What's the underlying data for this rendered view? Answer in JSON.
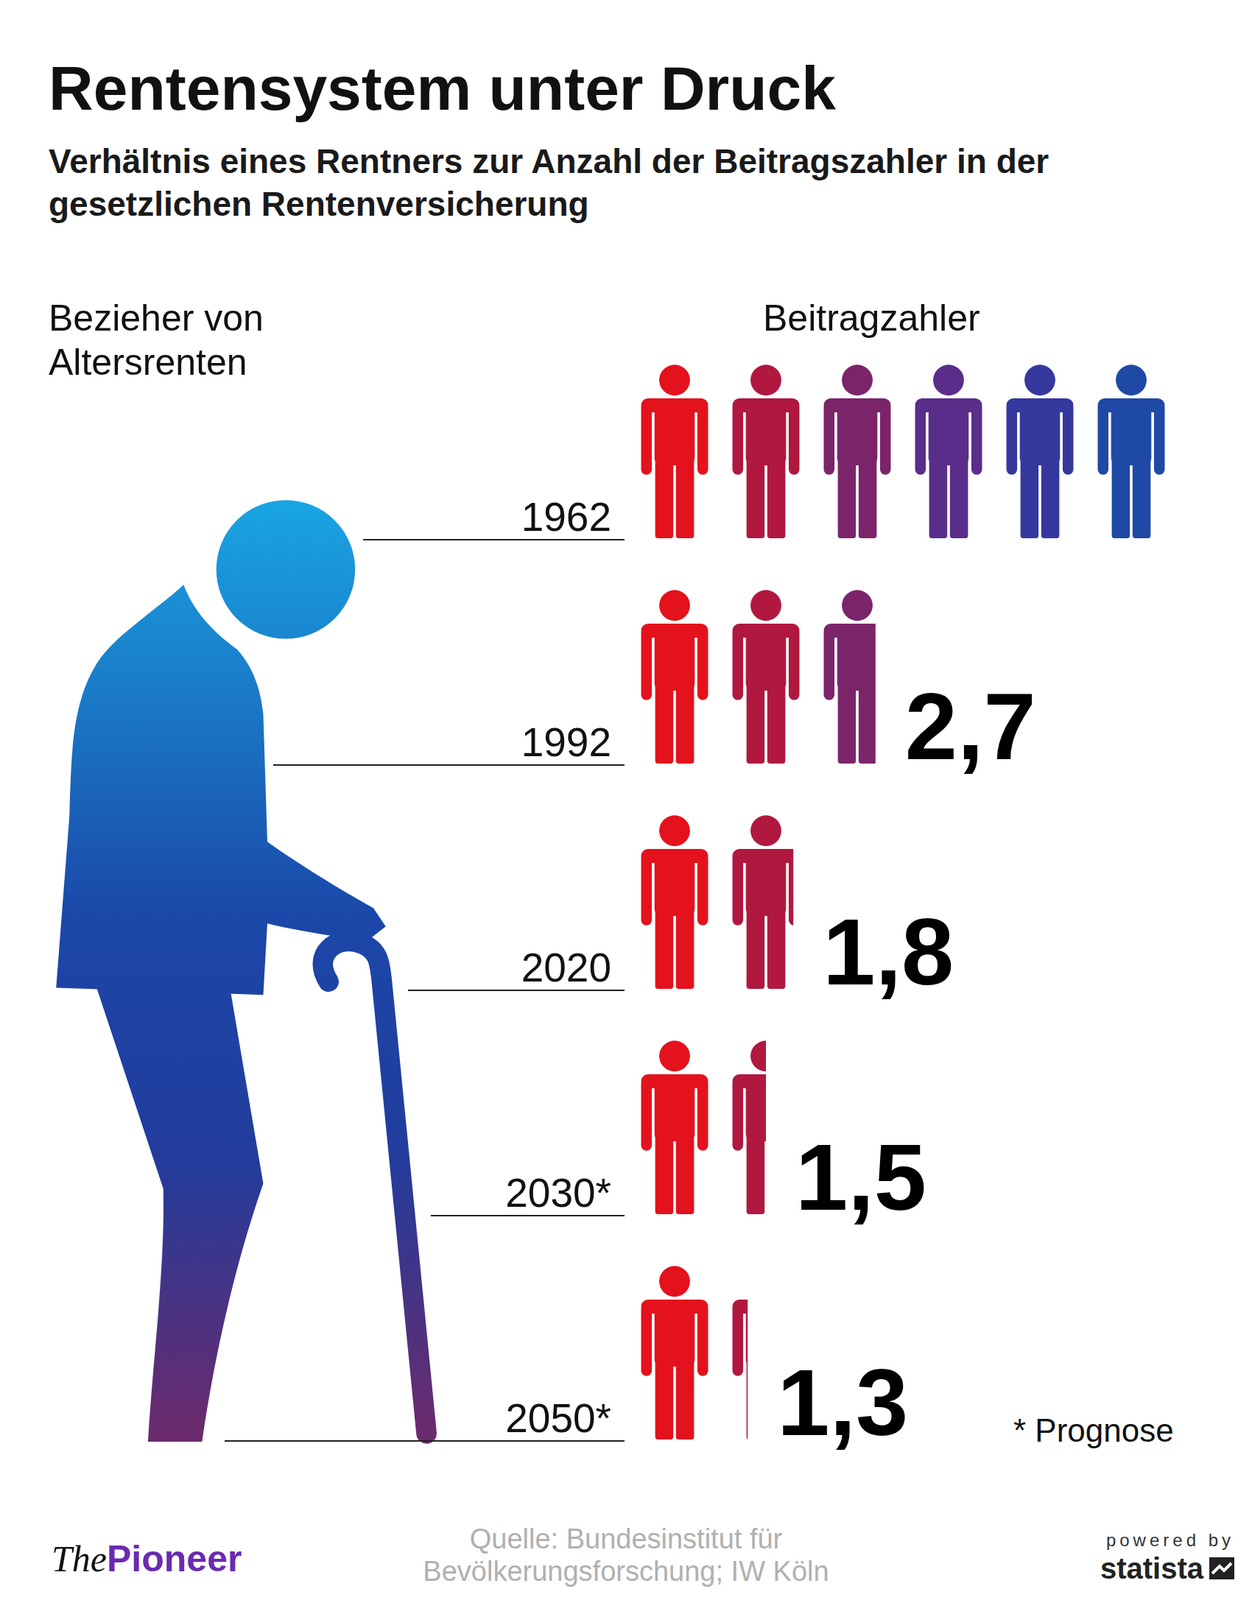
{
  "chart_data": {
    "type": "bar",
    "orientation": "horizontal",
    "title": "Rentensystem unter Druck",
    "subtitle": "Verhältnis eines Rentners zur Anzahl der Beitragszahler in der gesetzlichen Rentenversicherung",
    "y_label": "Bezieher von Altersrenten",
    "x_label": "Beitragzahler",
    "categories": [
      "1962",
      "1992",
      "2020",
      "2030*",
      "2050*"
    ],
    "values": [
      6,
      2.7,
      1.8,
      1.5,
      1.3
    ],
    "value_labels": [
      null,
      "2,7",
      "1,8",
      "1,5",
      "1,3"
    ],
    "data_labels": true,
    "xlim": [
      0,
      6
    ],
    "tick_labels": "y",
    "grid": false,
    "marker": "person",
    "note": "* Prognose",
    "source": "Quelle: Bundesinstitut für Bevölkerungsforschung; IW Köln",
    "publisher": [
      "The",
      "Pioneer"
    ],
    "powered_by": [
      "powered by",
      "statista"
    ]
  }
}
